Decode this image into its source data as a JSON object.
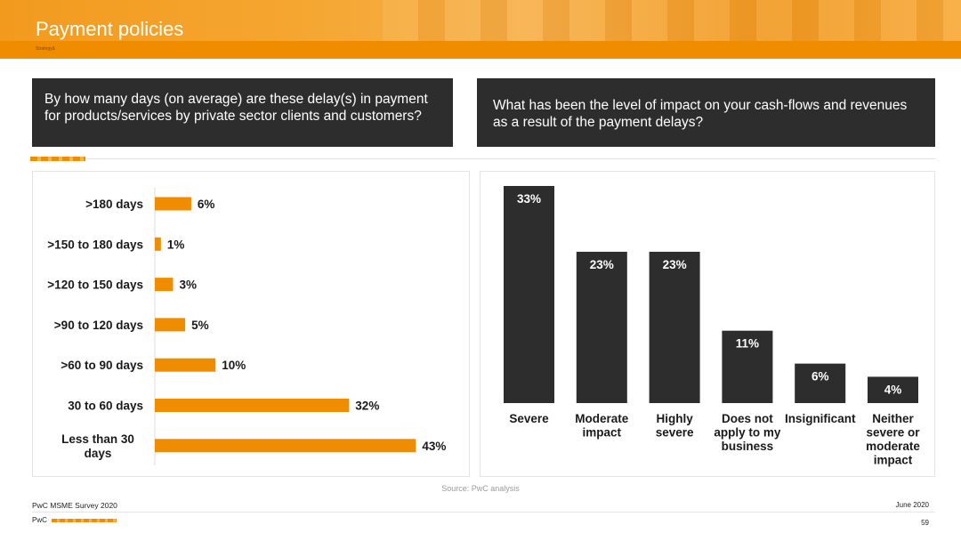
{
  "header": {
    "title": "Payment policies",
    "subtitle_small": "Strategy&"
  },
  "questions": {
    "left": "By how many days (on average) are these delay(s) in payment for products/services by private sector clients and customers?",
    "right": "What has been the level of impact on your cash-flows and revenues as a result of the payment delays?"
  },
  "colors": {
    "orange": "#f08c00",
    "dark": "#2d2d2d"
  },
  "chart_data": [
    {
      "type": "bar",
      "orientation": "horizontal",
      "categories": [
        ">180 days",
        ">150 to 180 days",
        ">120 to 150 days",
        ">90 to 120 days",
        ">60 to 90 days",
        "30 to 60 days",
        "Less than 30 days"
      ],
      "values": [
        6,
        1,
        3,
        5,
        10,
        32,
        43
      ],
      "value_labels": [
        "6%",
        "1%",
        "3%",
        "5%",
        "10%",
        "32%",
        "43%"
      ],
      "unit": "%",
      "xlim": [
        0,
        45
      ],
      "grid": false,
      "color": "#f08c00"
    },
    {
      "type": "bar",
      "orientation": "vertical",
      "categories": [
        "Severe",
        "Moderate impact",
        "Highly severe",
        "Does not apply to my business",
        "Insignificant",
        "Neither severe or moderate impact"
      ],
      "values": [
        33,
        23,
        23,
        11,
        6,
        4
      ],
      "value_labels": [
        "33%",
        "23%",
        "23%",
        "11%",
        "6%",
        "4%"
      ],
      "unit": "%",
      "ylim": [
        0,
        33
      ],
      "grid": false,
      "color": "#2d2d2d"
    }
  ],
  "source": "Source: PwC analysis",
  "footer": {
    "survey": "PwC MSME Survey 2020",
    "date": "June 2020",
    "brand": "PwC",
    "page": "59"
  }
}
